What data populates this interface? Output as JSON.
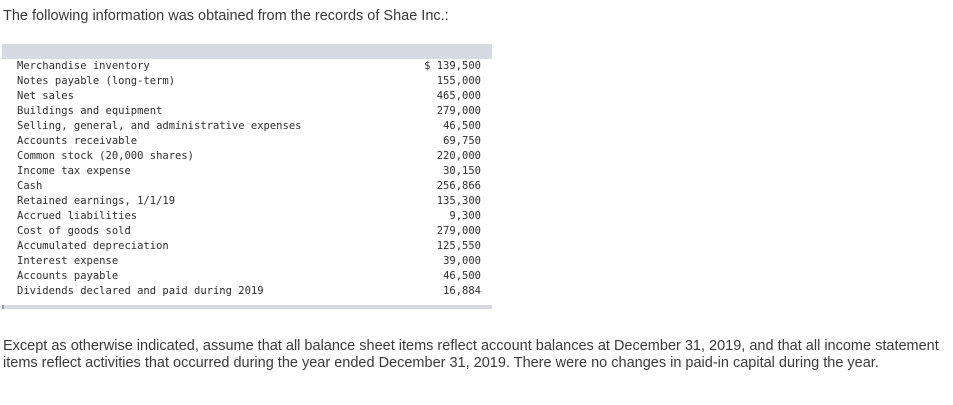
{
  "intro_text": "The following information was obtained from the records of Shae Inc.:",
  "table": {
    "rows": [
      {
        "label": "Merchandise inventory",
        "value": "$ 139,500"
      },
      {
        "label": "Notes payable (long-term)",
        "value": "155,000"
      },
      {
        "label": "Net sales",
        "value": "465,000"
      },
      {
        "label": "Buildings and equipment",
        "value": "279,000"
      },
      {
        "label": "Selling, general, and administrative expenses",
        "value": "46,500"
      },
      {
        "label": "Accounts receivable",
        "value": "69,750"
      },
      {
        "label": "Common stock (20,000 shares)",
        "value": "220,000"
      },
      {
        "label": "Income tax expense",
        "value": "30,150"
      },
      {
        "label": "Cash",
        "value": "256,866"
      },
      {
        "label": "Retained earnings, 1/1/19",
        "value": "135,300"
      },
      {
        "label": "Accrued liabilities",
        "value": "9,300"
      },
      {
        "label": "Cost of goods sold",
        "value": "279,000"
      },
      {
        "label": "Accumulated depreciation",
        "value": "125,550"
      },
      {
        "label": "Interest expense",
        "value": "39,000"
      },
      {
        "label": "Accounts payable",
        "value": "46,500"
      },
      {
        "label": "Dividends declared and paid during 2019",
        "value": "16,884"
      }
    ]
  },
  "closing_text": "Except as otherwise indicated, assume that all balance sheet items reflect account balances at December 31, 2019, and that all income statement items reflect activities that occurred during the year ended December 31, 2019. There were no changes in paid-in capital during the year."
}
